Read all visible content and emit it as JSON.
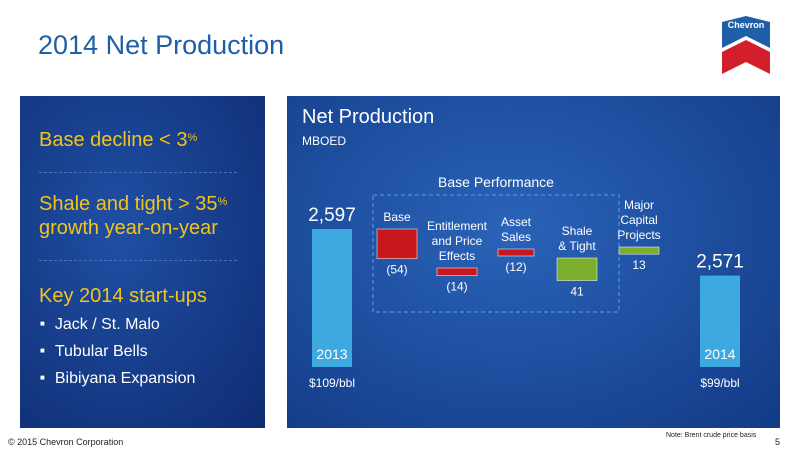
{
  "slide": {
    "title": "2014 Net Production",
    "logo_text": "Chevron",
    "footer": "© 2015 Chevron Corporation",
    "note": "Note: Brent crude price basis",
    "page_number": "5"
  },
  "left_panel": {
    "base_decline_text": "Base decline < 3",
    "base_decline_sup": "%",
    "shale_line1": "Shale and tight > 35",
    "shale_sup": "%",
    "shale_line2": "growth year-on-year",
    "startups_heading": "Key 2014 start-ups",
    "startups": [
      "Jack / St. Malo",
      "Tubular Bells",
      "Bibiyana Expansion"
    ]
  },
  "colors": {
    "bar_total": "#3ea9e0",
    "bar_negative": "#c8181e",
    "bar_positive": "#7cae2e",
    "group_border": "#5aa0e0"
  },
  "chart_data": {
    "type": "bar",
    "subtype": "waterfall",
    "title": "Net Production",
    "subtitle": "MBOED",
    "group_label": "Base Performance",
    "steps": [
      {
        "label": "2013",
        "label_lines": [
          "2013"
        ],
        "value": 2597,
        "value_label": "2,597",
        "kind": "total",
        "price_label": "$109/bbl"
      },
      {
        "label": "Base",
        "label_lines": [
          "Base"
        ],
        "value": -54,
        "value_label": "(54)",
        "kind": "negative"
      },
      {
        "label": "Entitlement and Price Effects",
        "label_lines": [
          "Entitlement",
          "and Price",
          "Effects"
        ],
        "value": -14,
        "value_label": "(14)",
        "kind": "negative"
      },
      {
        "label": "Asset Sales",
        "label_lines": [
          "Asset",
          "Sales"
        ],
        "value": -12,
        "value_label": "(12)",
        "kind": "negative"
      },
      {
        "label": "Shale & Tight",
        "label_lines": [
          "Shale",
          "& Tight"
        ],
        "value": 41,
        "value_label": "41",
        "kind": "positive"
      },
      {
        "label": "Major Capital Projects",
        "label_lines": [
          "Major",
          "Capital",
          "Projects"
        ],
        "value": 13,
        "value_label": "13",
        "kind": "positive"
      },
      {
        "label": "2014",
        "label_lines": [
          "2014"
        ],
        "value": 2571,
        "value_label": "2,571",
        "kind": "total",
        "price_label": "$99/bbl"
      }
    ]
  }
}
